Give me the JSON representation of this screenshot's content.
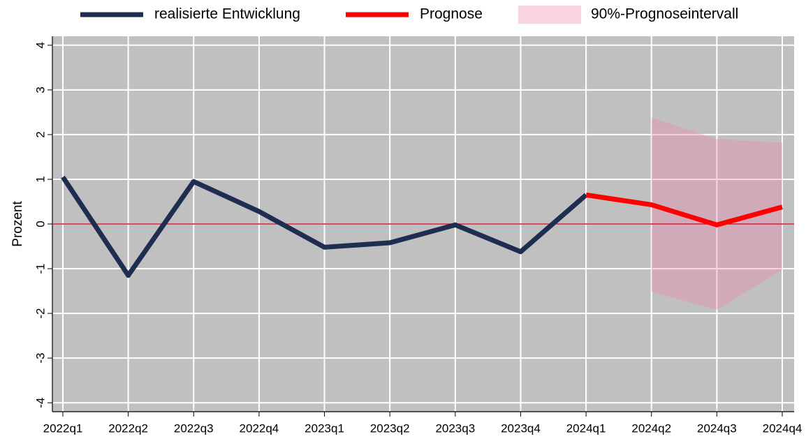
{
  "chart_data": {
    "type": "line",
    "categories": [
      "2022q1",
      "2022q2",
      "2022q3",
      "2022q4",
      "2023q1",
      "2023q2",
      "2023q3",
      "2023q4",
      "2024q1",
      "2024q2",
      "2024q3",
      "2024q4"
    ],
    "series": [
      {
        "name": "realisierte Entwicklung",
        "color": "#1f2d50",
        "values": [
          1.05,
          -1.15,
          0.95,
          0.28,
          -0.52,
          -0.42,
          -0.02,
          -0.62,
          0.65,
          null,
          null,
          null
        ]
      },
      {
        "name": "Prognose",
        "color": "#ff0000",
        "values": [
          null,
          null,
          null,
          null,
          null,
          null,
          null,
          null,
          0.65,
          0.43,
          -0.02,
          0.38
        ]
      }
    ],
    "band": {
      "name": "90%-Prognoseintervall",
      "color": "#f080b0",
      "upper": [
        null,
        null,
        null,
        null,
        null,
        null,
        null,
        null,
        null,
        2.38,
        1.9,
        1.82
      ],
      "lower": [
        null,
        null,
        null,
        null,
        null,
        null,
        null,
        null,
        null,
        -1.52,
        -1.92,
        -1.02
      ]
    },
    "y_label": "Prozent",
    "ylim": [
      -4.2,
      4.2
    ],
    "yticks": [
      4,
      3,
      2,
      1,
      0,
      -1,
      -2,
      -3,
      -4
    ],
    "zero_line_color": "#c8102e",
    "grid": true,
    "background": "#c0c0c0"
  }
}
